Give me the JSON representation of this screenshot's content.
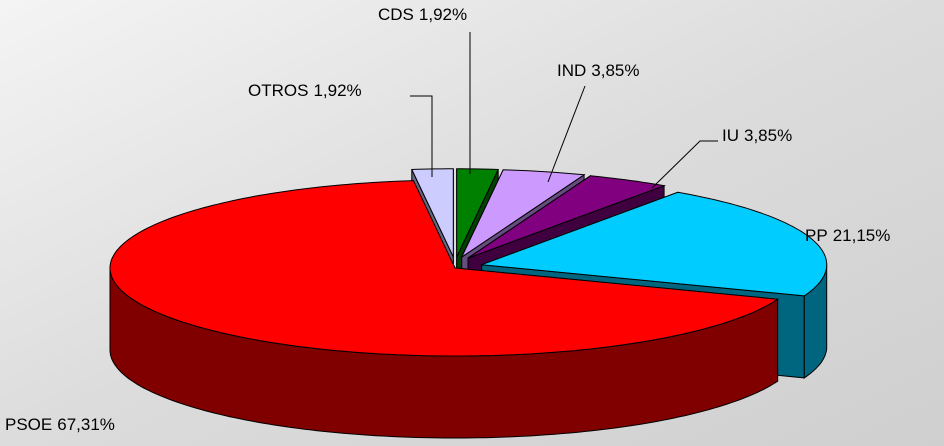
{
  "chart_data": {
    "type": "pie3d",
    "categories": [
      "CDS",
      "IND",
      "IU",
      "PP",
      "PSOE",
      "OTROS"
    ],
    "values": [
      1.92,
      3.85,
      3.85,
      21.15,
      67.31,
      1.92
    ],
    "value_labels": [
      "1,92%",
      "3,85%",
      "3,85%",
      "21,15%",
      "67,31%",
      "1,92%"
    ],
    "colors": [
      "#008000",
      "#cc99ff",
      "#800080",
      "#00ccff",
      "#ff0000",
      "#ccccff"
    ]
  }
}
